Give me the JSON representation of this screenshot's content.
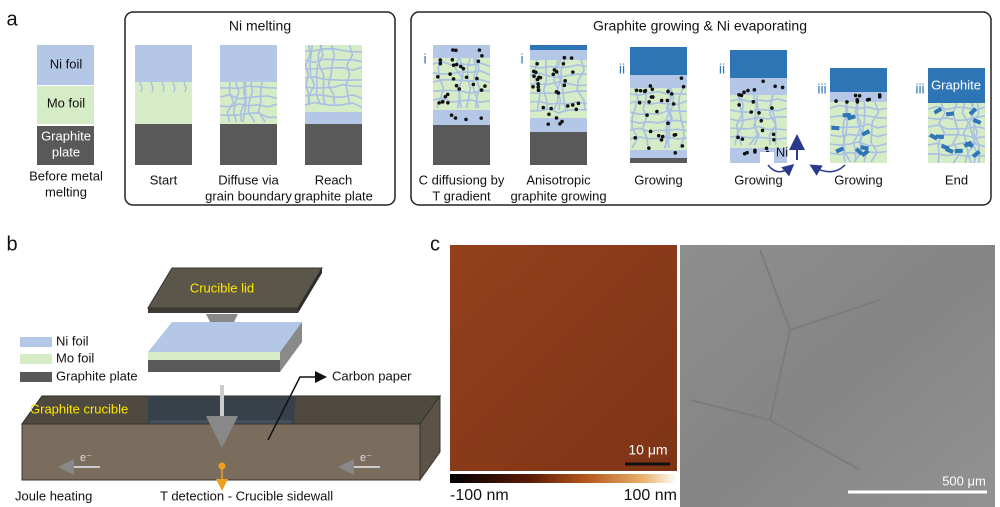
{
  "panel_a": {
    "label": "a",
    "before": {
      "layers": [
        [
          "Ni foil"
        ],
        [
          "Mo foil"
        ],
        [
          "Graphite",
          "plate"
        ]
      ],
      "caption": [
        "Before metal",
        "melting"
      ]
    },
    "ni_melting": {
      "title": "Ni melting",
      "stages": [
        [
          "Start"
        ],
        [
          "Diffuse via",
          "grain boundary"
        ],
        [
          "Reach",
          "graphite plate"
        ]
      ]
    },
    "graphite_growing": {
      "title": "Graphite growing & Ni evaporating",
      "stages": [
        {
          "step": "i",
          "caption": [
            "C diffusiong by",
            "T gradient"
          ]
        },
        {
          "step": "i",
          "caption": [
            "Anisotropic",
            "graphite growing"
          ]
        },
        {
          "step": "ii",
          "caption": [
            "Growing"
          ]
        },
        {
          "step": "ii",
          "caption": [
            "Growing"
          ]
        },
        {
          "step": "iii",
          "caption": [
            "Growing"
          ]
        },
        {
          "step": "iii",
          "caption": [
            "End"
          ]
        }
      ],
      "ni_label": "Ni",
      "graphite_label": "Graphite"
    }
  },
  "panel_b": {
    "label": "b",
    "crucible_lid": "Crucible lid",
    "layers": [
      "Ni foil",
      "Mo foil",
      "Graphite plate"
    ],
    "carbon_paper": "Carbon paper",
    "graphite_crucible": "Graphite crucible",
    "electron": [
      "e⁻",
      "e⁻"
    ],
    "joule_heating": "Joule heating",
    "t_detection": "T detection - Crucible sidewall"
  },
  "panel_c": {
    "label": "c",
    "afm_scale_bar": "10 μm",
    "colorbar_min": "-100 nm",
    "colorbar_max": "100 nm",
    "sem_scale_bar": "500 μm"
  }
}
